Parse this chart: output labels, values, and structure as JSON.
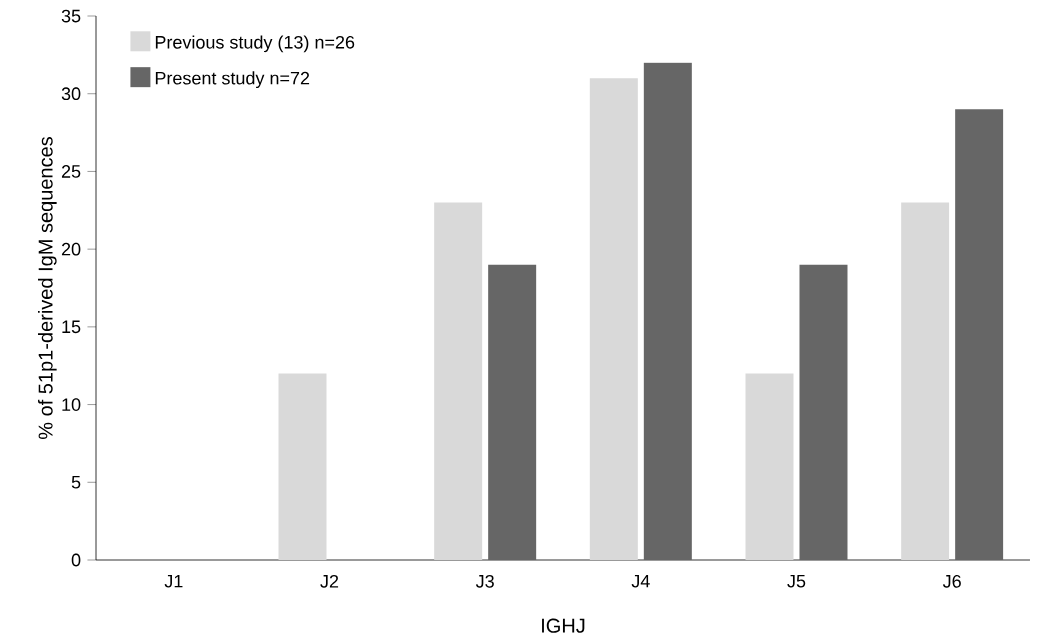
{
  "chart_data": {
    "type": "bar",
    "xlabel": "IGHJ",
    "ylabel": "% of 51p1-derived IgM sequences",
    "categories": [
      "J1",
      "J2",
      "J3",
      "J4",
      "J5",
      "J6"
    ],
    "series": [
      {
        "name": "Previous study (13) n=26",
        "color": "#d9d9d9",
        "values": [
          0,
          12,
          23,
          31,
          12,
          23
        ]
      },
      {
        "name": "Present study n=72",
        "color": "#666666",
        "values": [
          0,
          0,
          19,
          32,
          19,
          29
        ]
      }
    ],
    "ylim": [
      0,
      35
    ],
    "yticks": [
      0,
      5,
      10,
      15,
      20,
      25,
      30,
      35
    ],
    "grid": false,
    "legend": "top left"
  }
}
